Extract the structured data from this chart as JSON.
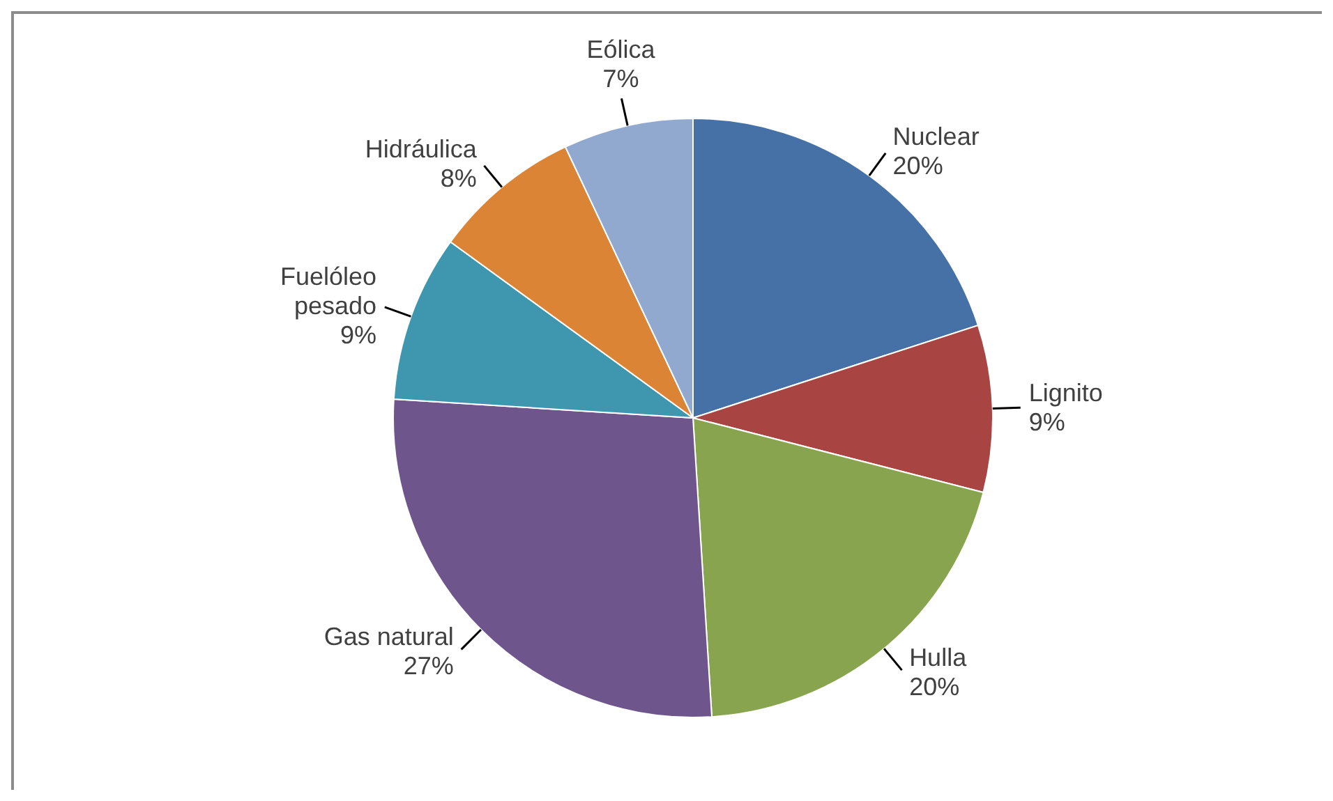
{
  "chart_data": {
    "type": "pie",
    "categories": [
      "Nuclear",
      "Lignito",
      "Hulla",
      "Gas natural",
      "Fuelóleo pesado",
      "Hidráulica",
      "Eólica"
    ],
    "values": [
      20,
      9,
      20,
      27,
      9,
      8,
      7
    ],
    "value_labels": [
      "20%",
      "9%",
      "20%",
      "27%",
      "9%",
      "8%",
      "7%"
    ],
    "colors": [
      "#4571a7",
      "#a84543",
      "#89a44f",
      "#6e558c",
      "#3e97ae",
      "#db8436",
      "#91a8cf"
    ]
  }
}
